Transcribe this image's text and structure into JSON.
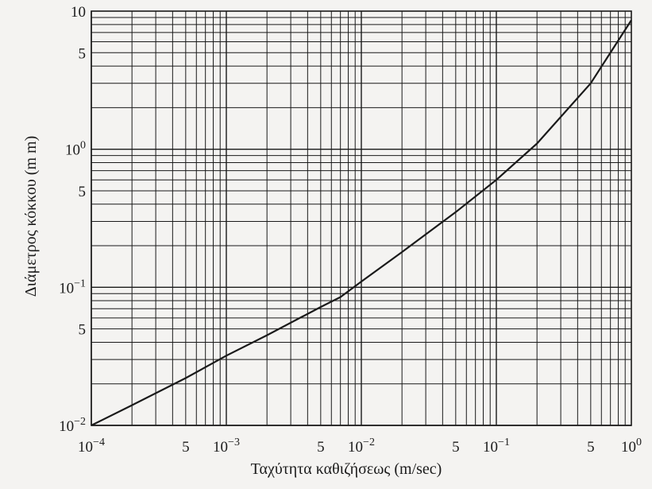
{
  "chart_data": {
    "type": "line",
    "title": "",
    "xlabel": "Ταχύτητα καθιζήσεως (m/sec)",
    "ylabel": "Διάμετρος κόκκου (m m)",
    "x_scale": "log",
    "y_scale": "log",
    "xlim": [
      0.0001,
      1
    ],
    "ylim": [
      0.01,
      10
    ],
    "grid": true,
    "legend": "none",
    "colors": {
      "line": "#1a1a1a",
      "grid": "#1a1a1a",
      "background": "#f4f3f1"
    },
    "x_ticks": [
      {
        "label": "10",
        "exp": "−4"
      },
      {
        "label": "5",
        "exp": ""
      },
      {
        "label": "10",
        "exp": "−3"
      },
      {
        "label": "5",
        "exp": ""
      },
      {
        "label": "10",
        "exp": "−2"
      },
      {
        "label": "5",
        "exp": ""
      },
      {
        "label": "10",
        "exp": "−1"
      },
      {
        "label": "5",
        "exp": ""
      },
      {
        "label": "10",
        "exp": "0"
      }
    ],
    "x_tick_values": [
      0.0001,
      0.0005,
      0.001,
      0.005,
      0.01,
      0.05,
      0.1,
      0.5,
      1
    ],
    "y_ticks": [
      {
        "label": "10",
        "exp": ""
      },
      {
        "label": "5",
        "exp": ""
      },
      {
        "label": "10",
        "exp": "0"
      },
      {
        "label": "5",
        "exp": ""
      },
      {
        "label": "10",
        "exp": "−1"
      },
      {
        "label": "5",
        "exp": ""
      },
      {
        "label": "10",
        "exp": "−2"
      }
    ],
    "y_tick_values": [
      10,
      5,
      1,
      0.5,
      0.1,
      0.05,
      0.01
    ],
    "series": [
      {
        "x": [
          0.0001,
          0.0002,
          0.0005,
          0.001,
          0.002,
          0.005,
          0.007,
          0.01,
          0.02,
          0.05,
          0.1,
          0.2,
          0.5,
          1
        ],
        "y": [
          0.01,
          0.014,
          0.022,
          0.032,
          0.045,
          0.072,
          0.085,
          0.11,
          0.18,
          0.35,
          0.6,
          1.1,
          3.0,
          8.6
        ]
      }
    ]
  }
}
